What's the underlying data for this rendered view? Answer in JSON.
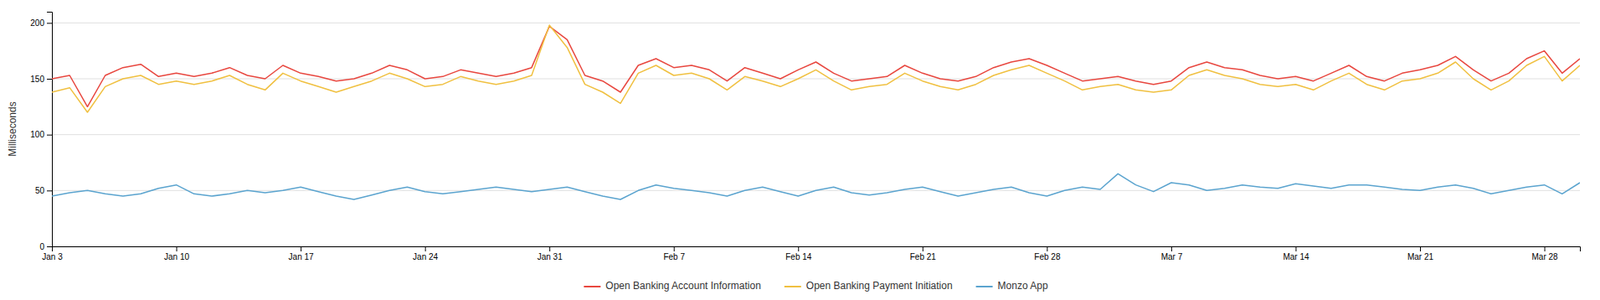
{
  "chart_data": {
    "type": "line",
    "ylabel": "Milliseconds",
    "categories": [
      "Jan 3",
      null,
      null,
      null,
      null,
      null,
      null,
      "Jan 10",
      null,
      null,
      null,
      null,
      null,
      null,
      "Jan 17",
      null,
      null,
      null,
      null,
      null,
      null,
      "Jan 24",
      null,
      null,
      null,
      null,
      null,
      null,
      "Jan 31",
      null,
      null,
      null,
      null,
      null,
      null,
      "Feb 7",
      null,
      null,
      null,
      null,
      null,
      null,
      "Feb 14",
      null,
      null,
      null,
      null,
      null,
      null,
      "Feb 21",
      null,
      null,
      null,
      null,
      null,
      null,
      "Feb 28",
      null,
      null,
      null,
      null,
      null,
      null,
      "Mar 7",
      null,
      null,
      null,
      null,
      null,
      null,
      "Mar 14",
      null,
      null,
      null,
      null,
      null,
      null,
      "Mar 21",
      null,
      null,
      null,
      null,
      null,
      null,
      "Mar 28",
      null,
      null
    ],
    "series": [
      {
        "name": "Open Banking Account Information",
        "color": "#e8473f",
        "values": [
          150,
          153,
          125,
          153,
          160,
          163,
          152,
          155,
          152,
          155,
          160,
          153,
          150,
          162,
          155,
          152,
          148,
          150,
          155,
          162,
          158,
          150,
          152,
          158,
          155,
          152,
          155,
          160,
          197,
          185,
          153,
          148,
          138,
          162,
          168,
          160,
          162,
          158,
          148,
          160,
          155,
          150,
          158,
          165,
          155,
          148,
          150,
          152,
          162,
          155,
          150,
          148,
          152,
          160,
          165,
          168,
          162,
          155,
          148,
          150,
          152,
          148,
          145,
          148,
          160,
          165,
          160,
          158,
          153,
          150,
          152,
          148,
          155,
          162,
          152,
          148,
          155,
          158,
          162,
          170,
          158,
          148,
          155,
          168,
          175,
          155,
          168
        ]
      },
      {
        "name": "Open Banking Payment Initiation",
        "color": "#f0c040",
        "values": [
          138,
          142,
          120,
          143,
          150,
          153,
          145,
          148,
          145,
          148,
          153,
          145,
          140,
          155,
          148,
          143,
          138,
          143,
          148,
          155,
          150,
          143,
          145,
          152,
          148,
          145,
          148,
          153,
          198,
          178,
          145,
          138,
          128,
          155,
          162,
          153,
          155,
          150,
          140,
          152,
          148,
          143,
          150,
          158,
          148,
          140,
          143,
          145,
          155,
          148,
          143,
          140,
          145,
          153,
          158,
          162,
          155,
          148,
          140,
          143,
          145,
          140,
          138,
          140,
          153,
          158,
          153,
          150,
          145,
          143,
          145,
          140,
          148,
          155,
          145,
          140,
          148,
          150,
          155,
          165,
          150,
          140,
          148,
          162,
          170,
          148,
          162
        ]
      },
      {
        "name": "Monzo App",
        "color": "#5ba4cf",
        "values": [
          45,
          48,
          50,
          47,
          45,
          47,
          52,
          55,
          47,
          45,
          47,
          50,
          48,
          50,
          53,
          49,
          45,
          42,
          46,
          50,
          53,
          49,
          47,
          49,
          51,
          53,
          51,
          49,
          51,
          53,
          49,
          45,
          42,
          50,
          55,
          52,
          50,
          48,
          45,
          50,
          53,
          49,
          45,
          50,
          53,
          48,
          46,
          48,
          51,
          53,
          49,
          45,
          48,
          51,
          53,
          48,
          45,
          50,
          53,
          51,
          65,
          55,
          49,
          57,
          55,
          50,
          52,
          55,
          53,
          52,
          56,
          54,
          52,
          55,
          55,
          53,
          51,
          50,
          53,
          55,
          52,
          47,
          50,
          53,
          55,
          47,
          57
        ]
      }
    ],
    "ylim": [
      0,
      210
    ],
    "yticks": [
      0,
      50,
      100,
      150,
      200
    ],
    "grid": true,
    "legend": "bottom"
  }
}
